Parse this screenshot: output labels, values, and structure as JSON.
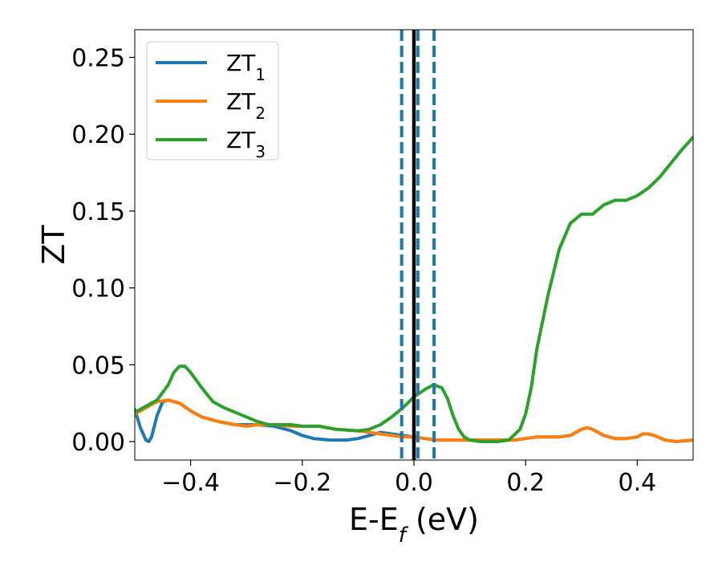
{
  "chart_data": {
    "type": "line",
    "xlabel": {
      "main": "E-E",
      "sub": "f",
      "unit": " (eV)"
    },
    "ylabel": "ZT",
    "xlim": [
      -0.5,
      0.5
    ],
    "ylim": [
      -0.012,
      0.268
    ],
    "xticks": [
      -0.4,
      -0.2,
      0.0,
      0.2,
      0.4
    ],
    "xtick_labels": [
      "−0.4",
      "−0.2",
      "0.0",
      "0.2",
      "0.4"
    ],
    "yticks": [
      0.0,
      0.05,
      0.1,
      0.15,
      0.2,
      0.25
    ],
    "ytick_labels": [
      "0.00",
      "0.05",
      "0.10",
      "0.15",
      "0.20",
      "0.25"
    ],
    "grid": false,
    "legend_position": "top-left",
    "vertical_lines": [
      {
        "x": 0.0,
        "style": "solid",
        "color": "#000000"
      },
      {
        "x": -0.022,
        "style": "dashed",
        "color": "#1f77b4"
      },
      {
        "x": 0.007,
        "style": "dashed",
        "color": "#1f77b4"
      },
      {
        "x": 0.036,
        "style": "dashed",
        "color": "#1f77b4"
      }
    ],
    "series": [
      {
        "name": "ZT",
        "subscript": "1",
        "color": "#1f77b4",
        "points": [
          [
            -0.5,
            0.021
          ],
          [
            -0.49,
            0.009
          ],
          [
            -0.48,
            0.001
          ],
          [
            -0.475,
            0.0
          ],
          [
            -0.47,
            0.003
          ],
          [
            -0.46,
            0.017
          ],
          [
            -0.45,
            0.026
          ],
          [
            -0.44,
            0.027
          ],
          [
            -0.42,
            0.025
          ],
          [
            -0.4,
            0.02
          ],
          [
            -0.38,
            0.016
          ],
          [
            -0.35,
            0.013
          ],
          [
            -0.32,
            0.011
          ],
          [
            -0.3,
            0.011
          ],
          [
            -0.28,
            0.011
          ],
          [
            -0.25,
            0.01
          ],
          [
            -0.22,
            0.007
          ],
          [
            -0.2,
            0.004
          ],
          [
            -0.18,
            0.002
          ],
          [
            -0.15,
            0.001
          ],
          [
            -0.12,
            0.001
          ],
          [
            -0.1,
            0.002
          ],
          [
            -0.08,
            0.004
          ],
          [
            -0.06,
            0.006
          ],
          [
            -0.04,
            0.005
          ],
          [
            -0.02,
            0.004
          ],
          [
            0.0,
            0.003
          ],
          [
            0.02,
            0.002
          ],
          [
            0.04,
            0.001
          ],
          [
            0.06,
            0.001
          ],
          [
            0.08,
            0.001
          ],
          [
            0.1,
            0.001
          ],
          [
            0.12,
            0.001
          ],
          [
            0.14,
            0.001
          ],
          [
            0.16,
            0.001
          ],
          [
            0.18,
            0.001
          ],
          [
            0.2,
            0.002
          ],
          [
            0.22,
            0.003
          ],
          [
            0.24,
            0.003
          ],
          [
            0.26,
            0.003
          ],
          [
            0.28,
            0.004
          ],
          [
            0.3,
            0.008
          ],
          [
            0.31,
            0.009
          ],
          [
            0.32,
            0.008
          ],
          [
            0.34,
            0.004
          ],
          [
            0.36,
            0.002
          ],
          [
            0.38,
            0.002
          ],
          [
            0.4,
            0.003
          ],
          [
            0.41,
            0.005
          ],
          [
            0.42,
            0.005
          ],
          [
            0.43,
            0.004
          ],
          [
            0.45,
            0.001
          ],
          [
            0.47,
            0.0
          ],
          [
            0.5,
            0.001
          ]
        ]
      },
      {
        "name": "ZT",
        "subscript": "2",
        "color": "#ff7f0e",
        "points": [
          [
            -0.5,
            0.018
          ],
          [
            -0.48,
            0.022
          ],
          [
            -0.46,
            0.026
          ],
          [
            -0.44,
            0.027
          ],
          [
            -0.42,
            0.025
          ],
          [
            -0.4,
            0.02
          ],
          [
            -0.38,
            0.016
          ],
          [
            -0.35,
            0.013
          ],
          [
            -0.32,
            0.011
          ],
          [
            -0.3,
            0.01
          ],
          [
            -0.28,
            0.011
          ],
          [
            -0.25,
            0.011
          ],
          [
            -0.22,
            0.01
          ],
          [
            -0.2,
            0.01
          ],
          [
            -0.17,
            0.01
          ],
          [
            -0.14,
            0.008
          ],
          [
            -0.1,
            0.007
          ],
          [
            -0.08,
            0.006
          ],
          [
            -0.06,
            0.005
          ],
          [
            -0.04,
            0.004
          ],
          [
            -0.02,
            0.003
          ],
          [
            0.0,
            0.003
          ],
          [
            0.02,
            0.002
          ],
          [
            0.04,
            0.001
          ],
          [
            0.06,
            0.001
          ],
          [
            0.08,
            0.001
          ],
          [
            0.1,
            0.001
          ],
          [
            0.12,
            0.001
          ],
          [
            0.14,
            0.001
          ],
          [
            0.16,
            0.001
          ],
          [
            0.18,
            0.001
          ],
          [
            0.2,
            0.002
          ],
          [
            0.22,
            0.003
          ],
          [
            0.24,
            0.003
          ],
          [
            0.26,
            0.003
          ],
          [
            0.28,
            0.004
          ],
          [
            0.3,
            0.008
          ],
          [
            0.31,
            0.009
          ],
          [
            0.32,
            0.008
          ],
          [
            0.34,
            0.004
          ],
          [
            0.36,
            0.002
          ],
          [
            0.38,
            0.002
          ],
          [
            0.4,
            0.003
          ],
          [
            0.41,
            0.005
          ],
          [
            0.42,
            0.005
          ],
          [
            0.43,
            0.004
          ],
          [
            0.45,
            0.001
          ],
          [
            0.47,
            0.0
          ],
          [
            0.5,
            0.001
          ]
        ]
      },
      {
        "name": "ZT",
        "subscript": "3",
        "color": "#2ca02c",
        "points": [
          [
            -0.5,
            0.019
          ],
          [
            -0.48,
            0.023
          ],
          [
            -0.46,
            0.027
          ],
          [
            -0.44,
            0.037
          ],
          [
            -0.43,
            0.045
          ],
          [
            -0.42,
            0.049
          ],
          [
            -0.41,
            0.049
          ],
          [
            -0.4,
            0.045
          ],
          [
            -0.38,
            0.035
          ],
          [
            -0.36,
            0.026
          ],
          [
            -0.34,
            0.022
          ],
          [
            -0.32,
            0.019
          ],
          [
            -0.3,
            0.016
          ],
          [
            -0.28,
            0.013
          ],
          [
            -0.26,
            0.011
          ],
          [
            -0.24,
            0.011
          ],
          [
            -0.22,
            0.011
          ],
          [
            -0.2,
            0.01
          ],
          [
            -0.17,
            0.01
          ],
          [
            -0.14,
            0.008
          ],
          [
            -0.1,
            0.007
          ],
          [
            -0.08,
            0.008
          ],
          [
            -0.06,
            0.011
          ],
          [
            -0.04,
            0.016
          ],
          [
            -0.02,
            0.022
          ],
          [
            0.0,
            0.029
          ],
          [
            0.02,
            0.034
          ],
          [
            0.035,
            0.037
          ],
          [
            0.05,
            0.035
          ],
          [
            0.06,
            0.028
          ],
          [
            0.07,
            0.017
          ],
          [
            0.08,
            0.008
          ],
          [
            0.09,
            0.003
          ],
          [
            0.1,
            0.001
          ],
          [
            0.12,
            0.0
          ],
          [
            0.15,
            0.0
          ],
          [
            0.17,
            0.001
          ],
          [
            0.19,
            0.008
          ],
          [
            0.2,
            0.018
          ],
          [
            0.21,
            0.035
          ],
          [
            0.22,
            0.06
          ],
          [
            0.24,
            0.095
          ],
          [
            0.26,
            0.125
          ],
          [
            0.28,
            0.142
          ],
          [
            0.3,
            0.148
          ],
          [
            0.32,
            0.148
          ],
          [
            0.34,
            0.154
          ],
          [
            0.36,
            0.157
          ],
          [
            0.38,
            0.157
          ],
          [
            0.4,
            0.16
          ],
          [
            0.42,
            0.165
          ],
          [
            0.44,
            0.172
          ],
          [
            0.46,
            0.181
          ],
          [
            0.48,
            0.19
          ],
          [
            0.5,
            0.198
          ]
        ]
      }
    ]
  }
}
